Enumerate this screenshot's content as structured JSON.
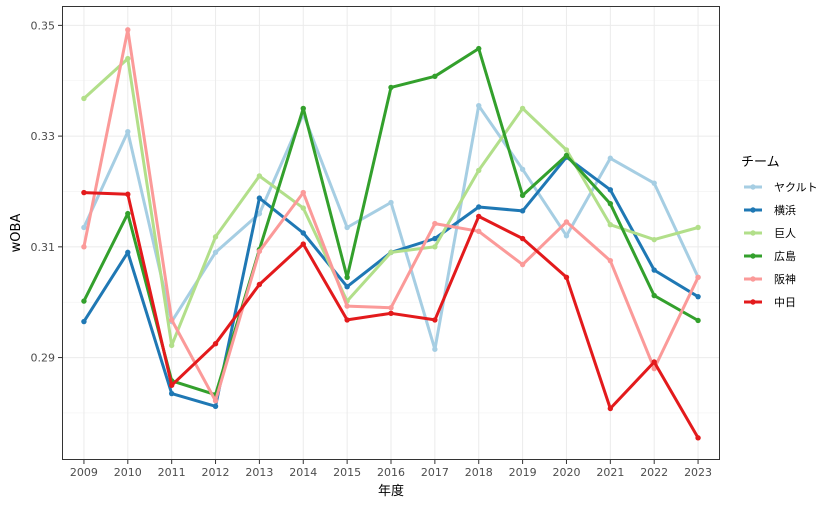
{
  "chart_data": {
    "type": "line",
    "xlabel": "年度",
    "ylabel": "wOBA",
    "x": [
      2009,
      2010,
      2011,
      2012,
      2013,
      2014,
      2015,
      2016,
      2017,
      2018,
      2019,
      2020,
      2021,
      2022,
      2023
    ],
    "xlim": [
      2008.5,
      2023.5
    ],
    "ylim": [
      0.2715,
      0.3535
    ],
    "y_ticks": [
      0.29,
      0.31,
      0.33,
      0.35
    ],
    "y_tick_labels": [
      "0.29",
      "0.31",
      "0.33",
      "0.35"
    ],
    "grid": true,
    "legend": {
      "title": "チーム",
      "position": "right"
    },
    "series": [
      {
        "name": "ヤクルト",
        "color": "#a6cee3",
        "values": [
          0.3135,
          0.3308,
          0.2965,
          0.309,
          0.316,
          0.334,
          0.3135,
          0.318,
          0.2915,
          0.3355,
          0.324,
          0.312,
          0.326,
          0.3215,
          0.3045
        ]
      },
      {
        "name": "横浜",
        "color": "#1f78b4",
        "values": [
          0.2965,
          0.309,
          0.2835,
          0.2812,
          0.3188,
          0.3125,
          0.3028,
          0.309,
          0.3115,
          0.3172,
          0.3165,
          0.3262,
          0.3203,
          0.3058,
          0.301
        ]
      },
      {
        "name": "巨人",
        "color": "#b2df8a",
        "values": [
          0.3368,
          0.344,
          0.2922,
          0.3118,
          0.3228,
          0.317,
          0.3002,
          0.309,
          0.31,
          0.3238,
          0.335,
          0.3275,
          0.314,
          0.3113,
          0.3135
        ]
      },
      {
        "name": "広島",
        "color": "#33a02c",
        "values": [
          0.3002,
          0.316,
          0.2858,
          0.2833,
          0.3095,
          0.335,
          0.3045,
          0.3388,
          0.3408,
          0.3458,
          0.3193,
          0.3265,
          0.3178,
          0.3012,
          0.2967
        ]
      },
      {
        "name": "阪神",
        "color": "#fb9a99",
        "values": [
          0.31,
          0.3492,
          0.2968,
          0.2822,
          0.3092,
          0.3198,
          0.2993,
          0.299,
          0.3142,
          0.3128,
          0.3068,
          0.3145,
          0.3075,
          0.288,
          0.3045
        ]
      },
      {
        "name": "中日",
        "color": "#e31a1c",
        "values": [
          0.3198,
          0.3195,
          0.285,
          0.2925,
          0.3032,
          0.3105,
          0.2968,
          0.298,
          0.2968,
          0.3155,
          0.3115,
          0.3045,
          0.2808,
          0.2892,
          0.2755
        ]
      }
    ]
  }
}
